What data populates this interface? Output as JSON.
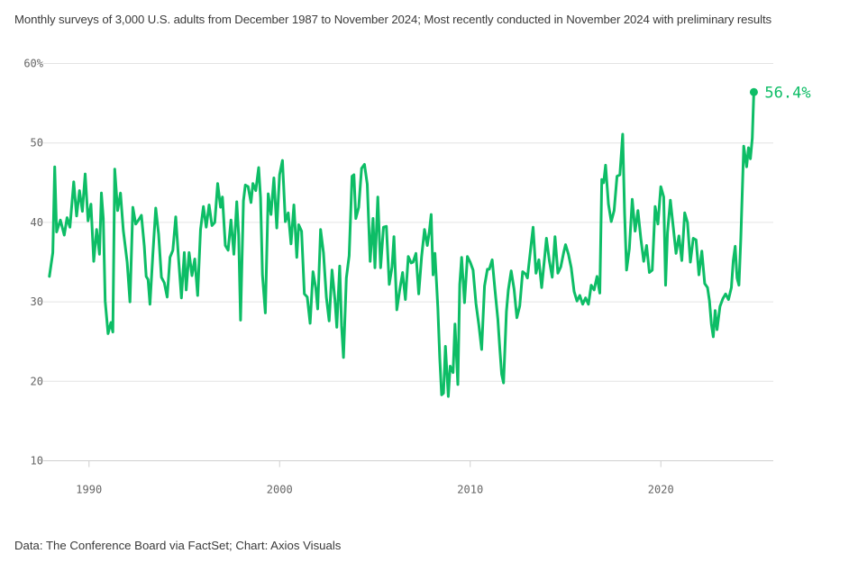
{
  "subtitle": "Monthly surveys of 3,000 U.S. adults from December 1987 to November 2024; Most recently conducted in November 2024 with preliminary results",
  "source": "Data: The Conference Board via FactSet; Chart: Axios Visuals",
  "colors": {
    "line": "#0dbd66",
    "grid": "#e4e4e4",
    "axis": "#cfcfcf",
    "tick_text": "#666666"
  },
  "chart_data": {
    "type": "line",
    "title": "",
    "xlabel": "",
    "ylabel": "",
    "xlim": [
      1987.6,
      2025.9
    ],
    "ylim": [
      10,
      60
    ],
    "yticks": [
      {
        "value": 60,
        "label": "60%"
      },
      {
        "value": 50,
        "label": "50"
      },
      {
        "value": 40,
        "label": "40"
      },
      {
        "value": 30,
        "label": "30"
      },
      {
        "value": 20,
        "label": "20"
      },
      {
        "value": 10,
        "label": "10"
      }
    ],
    "xticks": [
      {
        "value": 1990,
        "label": "1990"
      },
      {
        "value": 2000,
        "label": "2000"
      },
      {
        "value": 2010,
        "label": "2010"
      },
      {
        "value": 2020,
        "label": "2020"
      }
    ],
    "end_label": "56.4%",
    "series": [
      {
        "points": [
          [
            1987.92,
            33.2
          ],
          [
            1988.1,
            36.2
          ],
          [
            1988.2,
            47.0
          ],
          [
            1988.3,
            38.8
          ],
          [
            1988.5,
            40.3
          ],
          [
            1988.7,
            38.4
          ],
          [
            1988.85,
            40.6
          ],
          [
            1989.0,
            39.4
          ],
          [
            1989.2,
            45.1
          ],
          [
            1989.35,
            40.8
          ],
          [
            1989.5,
            44.0
          ],
          [
            1989.65,
            41.4
          ],
          [
            1989.8,
            46.1
          ],
          [
            1989.95,
            40.2
          ],
          [
            1990.1,
            42.3
          ],
          [
            1990.25,
            35.1
          ],
          [
            1990.4,
            39.1
          ],
          [
            1990.55,
            36.0
          ],
          [
            1990.65,
            43.7
          ],
          [
            1990.75,
            40.5
          ],
          [
            1990.85,
            30.1
          ],
          [
            1991.0,
            26.0
          ],
          [
            1991.15,
            27.4
          ],
          [
            1991.25,
            26.2
          ],
          [
            1991.35,
            46.7
          ],
          [
            1991.5,
            41.5
          ],
          [
            1991.65,
            43.7
          ],
          [
            1991.8,
            39.0
          ],
          [
            1992.0,
            35.0
          ],
          [
            1992.15,
            30.0
          ],
          [
            1992.3,
            41.9
          ],
          [
            1992.45,
            39.8
          ],
          [
            1992.6,
            40.3
          ],
          [
            1992.75,
            40.9
          ],
          [
            1992.9,
            37.0
          ],
          [
            1993.0,
            33.2
          ],
          [
            1993.1,
            32.8
          ],
          [
            1993.2,
            29.7
          ],
          [
            1993.35,
            36.0
          ],
          [
            1993.5,
            41.8
          ],
          [
            1993.65,
            38.5
          ],
          [
            1993.8,
            33.1
          ],
          [
            1993.95,
            32.4
          ],
          [
            1994.1,
            30.6
          ],
          [
            1994.25,
            35.6
          ],
          [
            1994.4,
            36.5
          ],
          [
            1994.55,
            40.7
          ],
          [
            1994.7,
            35.3
          ],
          [
            1994.85,
            30.5
          ],
          [
            1995.0,
            36.2
          ],
          [
            1995.1,
            31.5
          ],
          [
            1995.25,
            36.2
          ],
          [
            1995.4,
            33.3
          ],
          [
            1995.55,
            35.4
          ],
          [
            1995.7,
            30.8
          ],
          [
            1995.85,
            39.1
          ],
          [
            1996.0,
            42.0
          ],
          [
            1996.15,
            39.4
          ],
          [
            1996.3,
            42.2
          ],
          [
            1996.45,
            39.6
          ],
          [
            1996.6,
            40.0
          ],
          [
            1996.75,
            44.9
          ],
          [
            1996.9,
            41.9
          ],
          [
            1997.0,
            43.2
          ],
          [
            1997.15,
            37.1
          ],
          [
            1997.3,
            36.5
          ],
          [
            1997.45,
            40.3
          ],
          [
            1997.6,
            36.0
          ],
          [
            1997.75,
            42.6
          ],
          [
            1997.85,
            38.4
          ],
          [
            1997.95,
            27.7
          ],
          [
            1998.1,
            42.7
          ],
          [
            1998.2,
            44.7
          ],
          [
            1998.35,
            44.5
          ],
          [
            1998.5,
            42.5
          ],
          [
            1998.6,
            44.9
          ],
          [
            1998.75,
            44.0
          ],
          [
            1998.9,
            46.9
          ],
          [
            1999.0,
            43.1
          ],
          [
            1999.1,
            33.4
          ],
          [
            1999.25,
            28.6
          ],
          [
            1999.4,
            43.6
          ],
          [
            1999.55,
            41.0
          ],
          [
            1999.7,
            45.6
          ],
          [
            1999.85,
            39.3
          ],
          [
            2000.0,
            46.0
          ],
          [
            2000.15,
            47.8
          ],
          [
            2000.3,
            40.1
          ],
          [
            2000.45,
            41.2
          ],
          [
            2000.6,
            37.3
          ],
          [
            2000.75,
            42.2
          ],
          [
            2000.9,
            35.6
          ],
          [
            2001.0,
            39.7
          ],
          [
            2001.15,
            38.9
          ],
          [
            2001.3,
            31.0
          ],
          [
            2001.45,
            30.6
          ],
          [
            2001.6,
            27.3
          ],
          [
            2001.75,
            33.8
          ],
          [
            2001.9,
            31.7
          ],
          [
            2002.0,
            29.1
          ],
          [
            2002.15,
            39.1
          ],
          [
            2002.3,
            36.2
          ],
          [
            2002.45,
            30.6
          ],
          [
            2002.6,
            27.6
          ],
          [
            2002.75,
            34.0
          ],
          [
            2002.9,
            30.3
          ],
          [
            2003.0,
            26.8
          ],
          [
            2003.15,
            34.5
          ],
          [
            2003.25,
            27.0
          ],
          [
            2003.35,
            23.0
          ],
          [
            2003.5,
            33.0
          ],
          [
            2003.65,
            35.8
          ],
          [
            2003.8,
            45.8
          ],
          [
            2003.9,
            46.0
          ],
          [
            2004.0,
            40.5
          ],
          [
            2004.15,
            41.9
          ],
          [
            2004.3,
            46.8
          ],
          [
            2004.45,
            47.3
          ],
          [
            2004.6,
            44.8
          ],
          [
            2004.75,
            35.1
          ],
          [
            2004.9,
            40.5
          ],
          [
            2005.0,
            34.3
          ],
          [
            2005.15,
            43.2
          ],
          [
            2005.3,
            34.3
          ],
          [
            2005.45,
            39.4
          ],
          [
            2005.6,
            39.5
          ],
          [
            2005.75,
            32.2
          ],
          [
            2005.9,
            34.4
          ],
          [
            2006.0,
            38.2
          ],
          [
            2006.15,
            29.0
          ],
          [
            2006.3,
            31.5
          ],
          [
            2006.45,
            33.7
          ],
          [
            2006.6,
            30.3
          ],
          [
            2006.75,
            35.7
          ],
          [
            2006.9,
            34.9
          ],
          [
            2007.0,
            35.0
          ],
          [
            2007.15,
            36.1
          ],
          [
            2007.3,
            31.0
          ],
          [
            2007.45,
            35.7
          ],
          [
            2007.6,
            39.1
          ],
          [
            2007.75,
            37.1
          ],
          [
            2007.85,
            38.8
          ],
          [
            2007.95,
            41.0
          ],
          [
            2008.05,
            33.4
          ],
          [
            2008.15,
            36.1
          ],
          [
            2008.3,
            29.3
          ],
          [
            2008.4,
            23.0
          ],
          [
            2008.5,
            18.3
          ],
          [
            2008.6,
            18.5
          ],
          [
            2008.7,
            24.4
          ],
          [
            2008.85,
            18.1
          ],
          [
            2008.95,
            21.9
          ],
          [
            2009.1,
            21.1
          ],
          [
            2009.2,
            27.2
          ],
          [
            2009.35,
            19.6
          ],
          [
            2009.45,
            32.2
          ],
          [
            2009.55,
            35.6
          ],
          [
            2009.7,
            29.9
          ],
          [
            2009.85,
            35.7
          ],
          [
            2010.0,
            35.0
          ],
          [
            2010.15,
            34.0
          ],
          [
            2010.3,
            29.8
          ],
          [
            2010.45,
            27.1
          ],
          [
            2010.6,
            24.0
          ],
          [
            2010.75,
            32.0
          ],
          [
            2010.9,
            34.1
          ],
          [
            2011.0,
            34.1
          ],
          [
            2011.15,
            35.3
          ],
          [
            2011.3,
            31.5
          ],
          [
            2011.45,
            27.8
          ],
          [
            2011.55,
            24.2
          ],
          [
            2011.65,
            20.9
          ],
          [
            2011.75,
            19.8
          ],
          [
            2011.9,
            28.8
          ],
          [
            2012.0,
            31.5
          ],
          [
            2012.15,
            33.9
          ],
          [
            2012.3,
            31.6
          ],
          [
            2012.45,
            28.0
          ],
          [
            2012.6,
            29.5
          ],
          [
            2012.75,
            33.8
          ],
          [
            2012.9,
            33.5
          ],
          [
            2013.0,
            33.0
          ],
          [
            2013.15,
            36.3
          ],
          [
            2013.3,
            39.4
          ],
          [
            2013.45,
            33.6
          ],
          [
            2013.6,
            35.3
          ],
          [
            2013.75,
            31.8
          ],
          [
            2013.9,
            35.5
          ],
          [
            2014.0,
            38.0
          ],
          [
            2014.15,
            35.2
          ],
          [
            2014.3,
            33.1
          ],
          [
            2014.45,
            38.2
          ],
          [
            2014.6,
            33.6
          ],
          [
            2014.75,
            34.4
          ],
          [
            2014.9,
            36.2
          ],
          [
            2015.0,
            37.2
          ],
          [
            2015.15,
            36.0
          ],
          [
            2015.3,
            34.3
          ],
          [
            2015.45,
            31.3
          ],
          [
            2015.6,
            30.1
          ],
          [
            2015.75,
            30.8
          ],
          [
            2015.9,
            29.7
          ],
          [
            2016.05,
            30.5
          ],
          [
            2016.2,
            29.7
          ],
          [
            2016.35,
            32.1
          ],
          [
            2016.5,
            31.5
          ],
          [
            2016.65,
            33.2
          ],
          [
            2016.8,
            31.1
          ],
          [
            2016.9,
            45.4
          ],
          [
            2017.0,
            45.0
          ],
          [
            2017.1,
            47.2
          ],
          [
            2017.25,
            42.3
          ],
          [
            2017.4,
            40.1
          ],
          [
            2017.55,
            41.5
          ],
          [
            2017.7,
            45.8
          ],
          [
            2017.85,
            46.0
          ],
          [
            2018.0,
            51.1
          ],
          [
            2018.1,
            41.2
          ],
          [
            2018.2,
            34.0
          ],
          [
            2018.35,
            36.7
          ],
          [
            2018.5,
            42.9
          ],
          [
            2018.65,
            38.9
          ],
          [
            2018.8,
            41.5
          ],
          [
            2018.95,
            38.0
          ],
          [
            2019.1,
            35.1
          ],
          [
            2019.25,
            37.1
          ],
          [
            2019.4,
            33.7
          ],
          [
            2019.55,
            34.0
          ],
          [
            2019.7,
            42.0
          ],
          [
            2019.85,
            39.8
          ],
          [
            2020.0,
            44.5
          ],
          [
            2020.15,
            43.2
          ],
          [
            2020.25,
            32.1
          ],
          [
            2020.35,
            38.7
          ],
          [
            2020.5,
            42.8
          ],
          [
            2020.65,
            39.4
          ],
          [
            2020.8,
            36.1
          ],
          [
            2020.95,
            38.3
          ],
          [
            2021.1,
            35.2
          ],
          [
            2021.25,
            41.2
          ],
          [
            2021.4,
            40.0
          ],
          [
            2021.55,
            35.0
          ],
          [
            2021.7,
            38.0
          ],
          [
            2021.85,
            37.8
          ],
          [
            2022.0,
            33.4
          ],
          [
            2022.15,
            36.4
          ],
          [
            2022.3,
            32.3
          ],
          [
            2022.45,
            31.8
          ],
          [
            2022.55,
            30.1
          ],
          [
            2022.65,
            27.2
          ],
          [
            2022.75,
            25.6
          ],
          [
            2022.85,
            28.9
          ],
          [
            2022.95,
            26.5
          ],
          [
            2023.1,
            29.4
          ],
          [
            2023.25,
            30.4
          ],
          [
            2023.4,
            31.0
          ],
          [
            2023.55,
            30.3
          ],
          [
            2023.7,
            31.8
          ],
          [
            2023.8,
            35.2
          ],
          [
            2023.9,
            37.0
          ],
          [
            2024.0,
            33.0
          ],
          [
            2024.1,
            32.1
          ],
          [
            2024.2,
            38.1
          ],
          [
            2024.35,
            49.6
          ],
          [
            2024.5,
            47.0
          ],
          [
            2024.6,
            49.4
          ],
          [
            2024.7,
            48.0
          ],
          [
            2024.8,
            50.6
          ],
          [
            2024.88,
            56.4
          ]
        ]
      }
    ]
  }
}
